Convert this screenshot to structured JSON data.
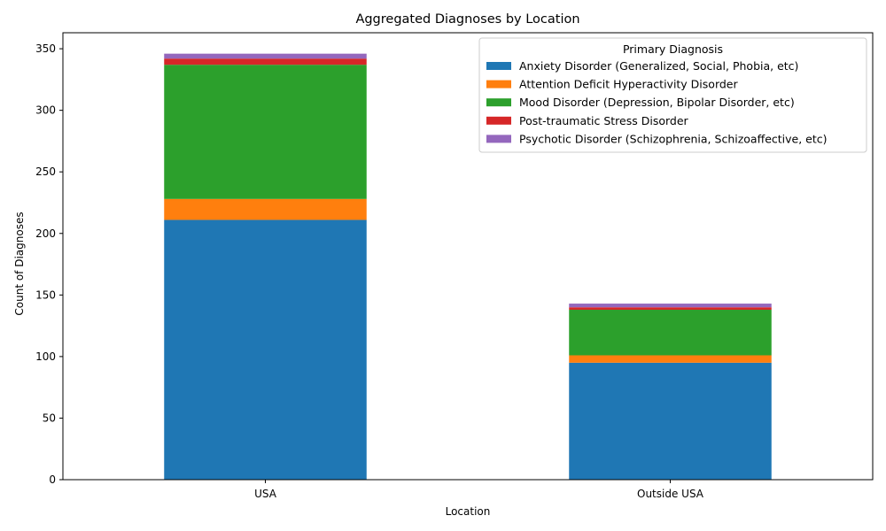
{
  "chart_data": {
    "type": "bar",
    "stacked": true,
    "title": "Aggregated Diagnoses by Location",
    "xlabel": "Location",
    "ylabel": "Count of Diagnoses",
    "categories": [
      "USA",
      "Outside USA"
    ],
    "ylim": [
      0,
      363
    ],
    "yticks": [
      0,
      50,
      100,
      150,
      200,
      250,
      300,
      350
    ],
    "grid": false,
    "legend": {
      "title": "Primary Diagnosis",
      "placement": "top-right"
    },
    "series": [
      {
        "name": "Anxiety Disorder (Generalized, Social, Phobia, etc)",
        "color": "#1f77b4",
        "values": [
          211,
          95
        ]
      },
      {
        "name": "Attention Deficit Hyperactivity Disorder",
        "color": "#ff7f0e",
        "values": [
          17,
          6
        ]
      },
      {
        "name": "Mood Disorder (Depression, Bipolar Disorder, etc)",
        "color": "#2ca02c",
        "values": [
          109,
          37
        ]
      },
      {
        "name": "Post-traumatic Stress Disorder",
        "color": "#d62728",
        "values": [
          5,
          2
        ]
      },
      {
        "name": "Psychotic Disorder (Schizophrenia, Schizoaffective, etc)",
        "color": "#9467bd",
        "values": [
          4,
          3
        ]
      }
    ]
  }
}
